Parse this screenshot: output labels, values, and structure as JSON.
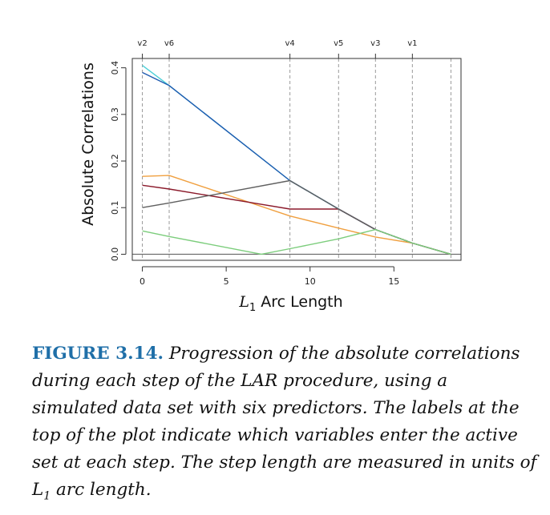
{
  "chart_data": {
    "type": "line",
    "xlabel_prefix": "L",
    "xlabel_sub": "1",
    "xlabel_rest": " Arc Length",
    "ylabel": "Absolute Correlations",
    "xlim": [
      -0.6,
      19.0
    ],
    "ylim": [
      -0.013,
      0.42
    ],
    "x_ticks": [
      0,
      5,
      10,
      15
    ],
    "y_ticks": [
      0.0,
      0.1,
      0.2,
      0.3,
      0.4
    ],
    "y_tick_labels": [
      "0.0",
      "0.1",
      "0.2",
      "0.3",
      "0.4"
    ],
    "step_x": [
      0,
      1.6,
      8.8,
      11.7,
      13.9,
      16.1,
      18.4
    ],
    "top_labels": [
      {
        "x": 0,
        "label": "v2"
      },
      {
        "x": 1.6,
        "label": "v6"
      },
      {
        "x": 8.8,
        "label": "v4"
      },
      {
        "x": 11.7,
        "label": "v5"
      },
      {
        "x": 13.9,
        "label": "v3"
      },
      {
        "x": 16.1,
        "label": "v1"
      }
    ],
    "series": [
      {
        "color": "#4dd0d8",
        "x": [
          0,
          1.6,
          8.8,
          11.7,
          13.9,
          16.1,
          18.4
        ],
        "y": [
          0.405,
          0.362,
          0.158,
          0.097,
          0.053,
          0.024,
          0.0
        ]
      },
      {
        "color": "#1f5bb0",
        "x": [
          0,
          1.6,
          8.8,
          11.7,
          13.9,
          16.1,
          18.4
        ],
        "y": [
          0.39,
          0.362,
          0.158,
          0.097,
          0.053,
          0.024,
          0.0
        ]
      },
      {
        "color": "#f0a040",
        "x": [
          0,
          1.6,
          8.8,
          11.7,
          13.9,
          16.1,
          18.4
        ],
        "y": [
          0.167,
          0.169,
          0.082,
          0.056,
          0.037,
          0.024,
          0.0
        ]
      },
      {
        "color": "#8b1a2b",
        "x": [
          0,
          1.6,
          8.8,
          11.7,
          13.9,
          16.1,
          18.4
        ],
        "y": [
          0.148,
          0.14,
          0.097,
          0.097,
          0.053,
          0.024,
          0.0
        ]
      },
      {
        "color": "#606060",
        "x": [
          0,
          1.6,
          8.8,
          11.7,
          13.9,
          16.1,
          18.4
        ],
        "y": [
          0.1,
          0.11,
          0.158,
          0.097,
          0.053,
          0.024,
          0.0
        ]
      },
      {
        "color": "#7ccd7c",
        "x": [
          0,
          1.6,
          7.1,
          8.8,
          11.7,
          13.9,
          16.1,
          18.4
        ],
        "y": [
          0.05,
          0.038,
          0.0,
          0.012,
          0.033,
          0.053,
          0.024,
          0.0
        ]
      }
    ]
  },
  "caption": {
    "label": "FIGURE 3.14.",
    "text_1": "Progression of the absolute correlations during each step of the LAR procedure, using a simulated data set with six predictors. The labels at the top of the plot indicate which variables enter the active set at each step. The step length are measured in units of ",
    "math_L": "L",
    "math_sub": "1",
    "text_2": " arc length."
  }
}
